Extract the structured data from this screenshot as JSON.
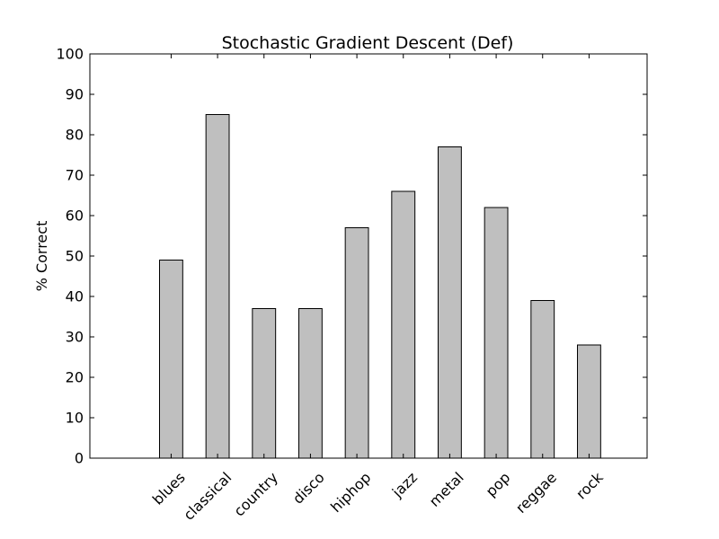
{
  "chart_data": {
    "type": "bar",
    "title": "Stochastic Gradient Descent (Def)",
    "xlabel": "",
    "ylabel": "% Correct",
    "categories": [
      "blues",
      "classical",
      "country",
      "disco",
      "hiphop",
      "jazz",
      "metal",
      "pop",
      "reggae",
      "rock"
    ],
    "values": [
      49,
      85,
      37,
      37,
      57,
      66,
      77,
      62,
      39,
      28
    ],
    "ylim": [
      0,
      100
    ],
    "yticks": [
      0,
      10,
      20,
      30,
      40,
      50,
      60,
      70,
      80,
      90,
      100
    ],
    "xlim": [
      -1,
      11
    ],
    "grid": false,
    "bar_color": "#bfbfbf",
    "edge_color": "#000000"
  }
}
